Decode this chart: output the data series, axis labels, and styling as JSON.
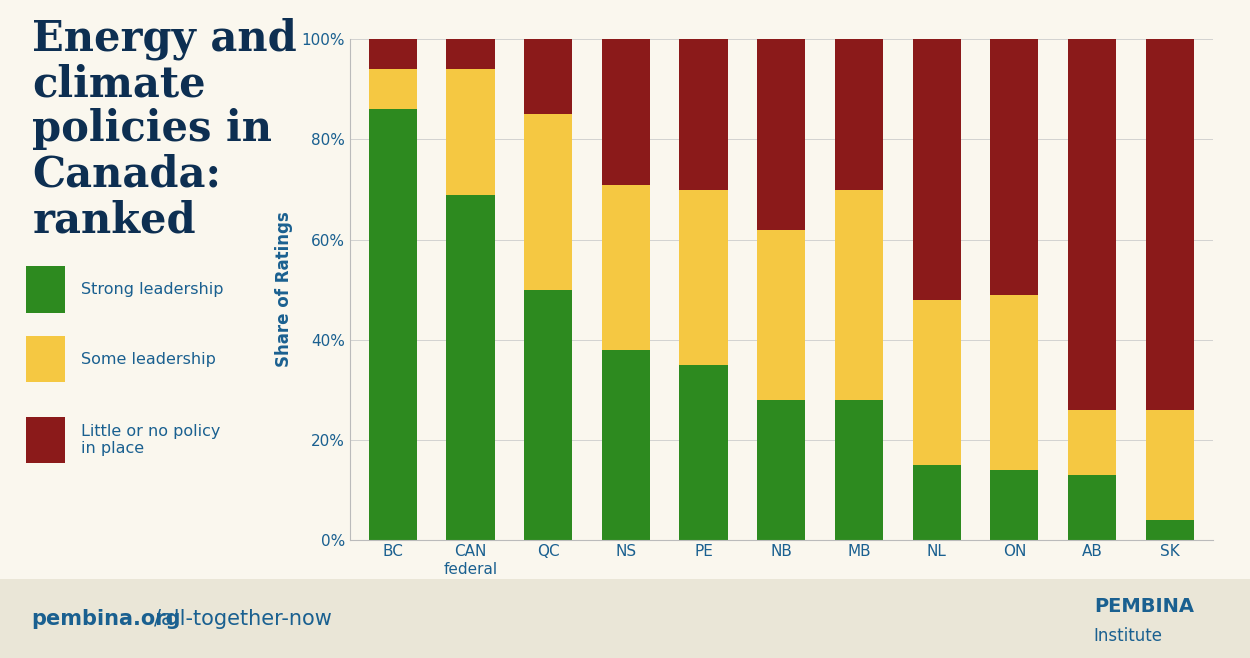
{
  "categories": [
    "BC",
    "CAN\nfederal",
    "QC",
    "NS",
    "PE",
    "NB",
    "MB",
    "NL",
    "ON",
    "AB",
    "SK"
  ],
  "strong": [
    86,
    69,
    50,
    38,
    35,
    28,
    28,
    15,
    14,
    13,
    4
  ],
  "some": [
    8,
    25,
    35,
    33,
    35,
    34,
    42,
    33,
    35,
    13,
    22
  ],
  "little": [
    6,
    6,
    15,
    29,
    30,
    38,
    30,
    52,
    51,
    74,
    74
  ],
  "color_strong": "#2d8a1f",
  "color_some": "#f5c842",
  "color_little": "#8b1a1a",
  "ylabel": "Share of Ratings",
  "legend_labels": [
    "Strong leadership",
    "Some leadership",
    "Little or no policy\nin place"
  ],
  "background_main": "#faf7ee",
  "background_footer": "#eae6d7",
  "text_color": "#1a6090",
  "title_color": "#0d2f52",
  "ytick_labels": [
    "0%",
    "20%",
    "40%",
    "60%",
    "80%",
    "100%"
  ],
  "ytick_values": [
    0,
    20,
    40,
    60,
    80,
    100
  ]
}
